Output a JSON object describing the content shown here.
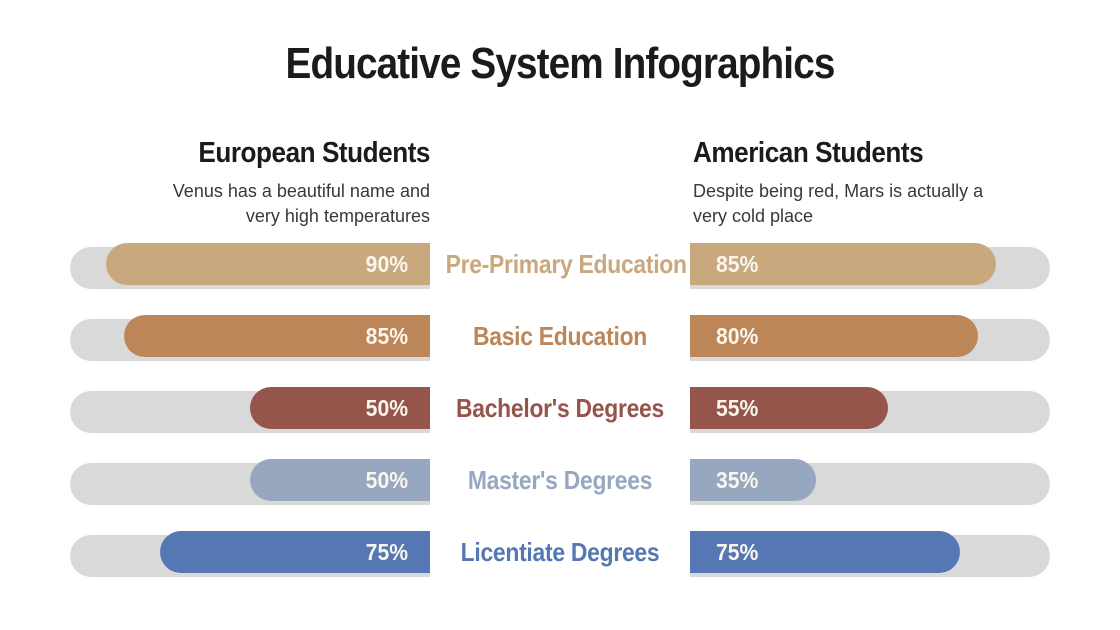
{
  "title": "Educative System Infographics",
  "columns": {
    "left": {
      "heading": "European Students",
      "subtitle": "Venus has a beautiful name and very high temperatures"
    },
    "right": {
      "heading": "American Students",
      "subtitle": "Despite being red, Mars is actually a very cold place"
    }
  },
  "colors": {
    "track": "#d9d9d9",
    "value_text": "#faf6ee",
    "title_text": "#1b1b1b",
    "subtitle_text": "#383838"
  },
  "chart_data": {
    "type": "bar",
    "orientation": "horizontal",
    "title": "Educative System Infographics",
    "categories": [
      "Pre-Primary Education",
      "Basic Education",
      "Bachelor's Degrees",
      "Master's Degrees",
      "Licentiate Degrees"
    ],
    "series": [
      {
        "name": "European Students",
        "values": [
          90,
          85,
          50,
          50,
          75
        ]
      },
      {
        "name": "American Students",
        "values": [
          85,
          80,
          55,
          35,
          75
        ]
      }
    ],
    "value_suffix": "%",
    "category_colors": [
      "#c9a87e",
      "#bc8659",
      "#96554a",
      "#96a7bf",
      "#5578b4"
    ],
    "xlim": [
      0,
      100
    ],
    "grid": false,
    "legend_position": "column-headers",
    "left_series_anchor": "right",
    "right_series_anchor": "left"
  }
}
